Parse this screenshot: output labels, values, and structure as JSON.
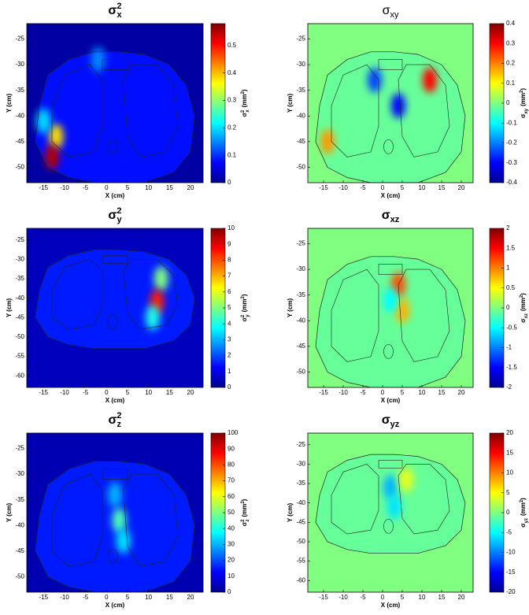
{
  "chart_data": [
    {
      "type": "heatmap",
      "title": "σ",
      "title_sub": "x",
      "title_sup": "2",
      "title_weight": "bold",
      "xlabel": "X (cm)",
      "ylabel": "Y (cm)",
      "xlim": [
        -19,
        23
      ],
      "ylim": [
        -22,
        -53
      ],
      "xticks": [
        -15,
        -10,
        -5,
        0,
        5,
        10,
        15,
        20
      ],
      "yticks": [
        -25,
        -30,
        -35,
        -40,
        -45,
        -50
      ],
      "clim": [
        0,
        0.58
      ],
      "cticks": [
        0,
        0.1,
        0.2,
        0.3,
        0.4,
        0.5
      ],
      "colorbar_label": "σ",
      "colorbar_sub": "x",
      "colorbar_sup": "2",
      "colorbar_unit": "(mm",
      "colorbar_unit_sup": "2",
      "colorbar_unit_end": ")",
      "background_value": 0.02,
      "body_value": 0.08,
      "hotspots": [
        {
          "x": -12,
          "y": -44,
          "value": 0.38
        },
        {
          "x": -13,
          "y": -48,
          "value": 0.55
        },
        {
          "x": -15,
          "y": -41,
          "value": 0.2
        },
        {
          "x": -2,
          "y": -29,
          "value": 0.15
        }
      ]
    },
    {
      "type": "heatmap",
      "title": "σ",
      "title_sub": "xy",
      "title_sup": "",
      "title_weight": "normal",
      "xlabel": "X (cm)",
      "ylabel": "Y (cm)",
      "xlim": [
        -19,
        23
      ],
      "ylim": [
        -22,
        -53
      ],
      "xticks": [
        -15,
        -10,
        -5,
        0,
        5,
        10,
        15,
        20
      ],
      "yticks": [
        -25,
        -30,
        -35,
        -40,
        -45,
        -50
      ],
      "clim": [
        -0.4,
        0.4
      ],
      "cticks": [
        -0.4,
        -0.3,
        -0.2,
        -0.1,
        0,
        0.1,
        0.2,
        0.3,
        0.4
      ],
      "colorbar_label": "σ",
      "colorbar_sub": "xy",
      "colorbar_sup": "",
      "colorbar_unit": "(mm",
      "colorbar_unit_sup": "2",
      "colorbar_unit_end": ")",
      "background_value": 0,
      "body_value": -0.02,
      "hotspots": [
        {
          "x": 12,
          "y": -33,
          "value": 0.3
        },
        {
          "x": -14,
          "y": -45,
          "value": 0.18
        },
        {
          "x": -2,
          "y": -33,
          "value": -0.25
        },
        {
          "x": 4,
          "y": -38,
          "value": -0.3
        }
      ]
    },
    {
      "type": "heatmap",
      "title": "σ",
      "title_sub": "y",
      "title_sup": "2",
      "title_weight": "bold",
      "xlabel": "X (cm)",
      "ylabel": "Y (cm)",
      "xlim": [
        -19,
        23
      ],
      "ylim": [
        -22,
        -63
      ],
      "xticks": [
        -15,
        -10,
        -5,
        0,
        5,
        10,
        15,
        20
      ],
      "yticks": [
        -25,
        -30,
        -35,
        -40,
        -45,
        -50,
        -55,
        -60
      ],
      "clim": [
        0,
        10
      ],
      "cticks": [
        0,
        1,
        2,
        3,
        4,
        5,
        6,
        7,
        8,
        9,
        10
      ],
      "colorbar_label": "σ",
      "colorbar_sub": "y",
      "colorbar_sup": "2",
      "colorbar_unit": "(mm",
      "colorbar_unit_sup": "2",
      "colorbar_unit_end": ")",
      "background_value": 0.6,
      "body_value": 1.5,
      "hotspots": [
        {
          "x": 13,
          "y": -35,
          "value": 5
        },
        {
          "x": 12,
          "y": -41,
          "value": 8.5
        },
        {
          "x": 11,
          "y": -45,
          "value": 4
        }
      ]
    },
    {
      "type": "heatmap",
      "title": "σ",
      "title_sub": "xz",
      "title_sup": "",
      "title_weight": "bold",
      "xlabel": "X (cm)",
      "ylabel": "Y (cm)",
      "xlim": [
        -19,
        23
      ],
      "ylim": [
        -22,
        -53
      ],
      "xticks": [
        -15,
        -10,
        -5,
        0,
        5,
        10,
        15,
        20
      ],
      "yticks": [
        -25,
        -30,
        -35,
        -40,
        -45,
        -50
      ],
      "clim": [
        -2,
        2
      ],
      "cticks": [
        -2,
        -1.5,
        -1,
        -0.5,
        0,
        0.5,
        1,
        1.5,
        2
      ],
      "colorbar_label": "σ",
      "colorbar_sub": "xz",
      "colorbar_sup": "",
      "colorbar_unit": "(mm",
      "colorbar_unit_sup": "2",
      "colorbar_unit_end": ")",
      "background_value": 0,
      "body_value": -0.1,
      "hotspots": [
        {
          "x": 4,
          "y": -33,
          "value": 1.2
        },
        {
          "x": 5,
          "y": -38,
          "value": 0.8
        },
        {
          "x": 2,
          "y": -36,
          "value": -0.5
        }
      ]
    },
    {
      "type": "heatmap",
      "title": "σ",
      "title_sub": "z",
      "title_sup": "2",
      "title_weight": "bold",
      "xlabel": "X (cm)",
      "ylabel": "Y (cm)",
      "xlim": [
        -19,
        23
      ],
      "ylim": [
        -22,
        -53
      ],
      "xticks": [
        -15,
        -10,
        -5,
        0,
        5,
        10,
        15,
        20
      ],
      "yticks": [
        -25,
        -30,
        -35,
        -40,
        -45,
        -50
      ],
      "clim": [
        0,
        100
      ],
      "cticks": [
        0,
        10,
        20,
        30,
        40,
        50,
        60,
        70,
        80,
        90,
        100
      ],
      "colorbar_label": "σ",
      "colorbar_sub": "z",
      "colorbar_sup": "2",
      "colorbar_unit": "(mm",
      "colorbar_unit_sup": "2",
      "colorbar_unit_end": ")",
      "background_value": 5,
      "body_value": 15,
      "hotspots": [
        {
          "x": 2,
          "y": -34,
          "value": 30
        },
        {
          "x": 3,
          "y": -39,
          "value": 45
        },
        {
          "x": 4,
          "y": -43,
          "value": 35
        }
      ]
    },
    {
      "type": "heatmap",
      "title": "σ",
      "title_sub": "yz",
      "title_sup": "",
      "title_weight": "bold",
      "xlabel": "X (cm)",
      "ylabel": "Y (cm)",
      "xlim": [
        -19,
        23
      ],
      "ylim": [
        -22,
        -63
      ],
      "xticks": [
        -15,
        -10,
        -5,
        0,
        5,
        10,
        15,
        20
      ],
      "yticks": [
        -25,
        -30,
        -35,
        -40,
        -45,
        -50,
        -55,
        -60
      ],
      "clim": [
        -20,
        20
      ],
      "cticks": [
        -20,
        -15,
        -10,
        -5,
        0,
        5,
        10,
        15,
        20
      ],
      "colorbar_label": "σ",
      "colorbar_sub": "yz",
      "colorbar_sup": "",
      "colorbar_unit": "(mm",
      "colorbar_unit_sup": "2",
      "colorbar_unit_end": ")",
      "background_value": 0,
      "body_value": -1,
      "hotspots": [
        {
          "x": 2,
          "y": -36,
          "value": -8
        },
        {
          "x": 3,
          "y": -41,
          "value": -6
        },
        {
          "x": 6,
          "y": -34,
          "value": 4
        }
      ]
    }
  ]
}
